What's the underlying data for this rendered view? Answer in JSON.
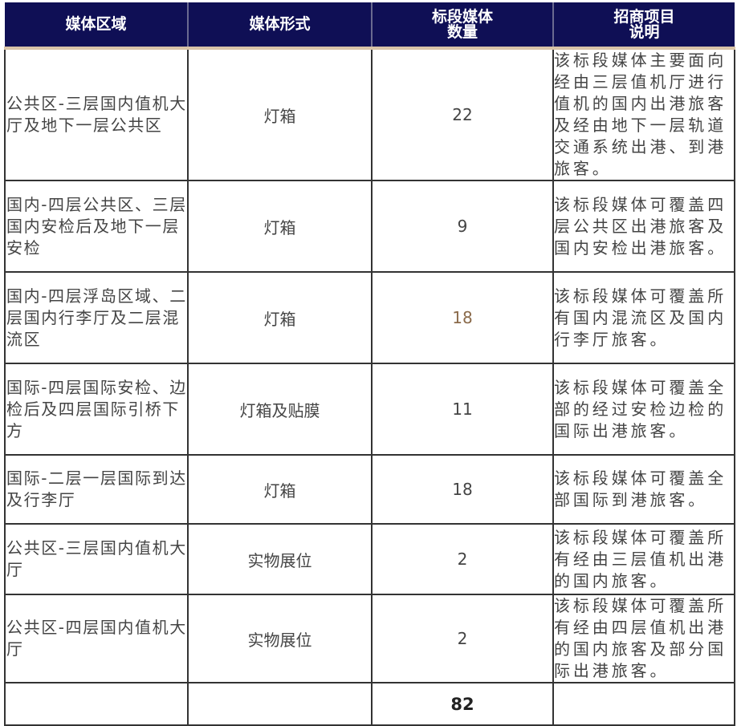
{
  "headers": [
    "媒体区域",
    "媒体形式",
    "标段媒体\n数量",
    "招商项目\n说明"
  ],
  "header_lines": {
    "h0": "媒体区域",
    "h1": "媒体形式",
    "h2a": "标段媒体",
    "h2b": "数量",
    "h3a": "招商项目",
    "h3b": "说明"
  },
  "colors": {
    "header_bg": "#0f0f55",
    "header_text": "#ffffff",
    "highlight_number": "#8a6a4a"
  },
  "rows": [
    {
      "area": "公共区-三层国内值机大厅及地下一层公共区",
      "form": "灯箱",
      "count": "22",
      "desc": "该标段媒体主要面向经由三层值机厅进行值机的国内出港旅客及经由地下一层轨道交通系统出港、到港旅客。"
    },
    {
      "area": "国内-四层公共区、三层国内安检后及地下一层安检",
      "form": "灯箱",
      "count": "9",
      "desc": "该标段媒体可覆盖四层公共区出港旅客及国内安检出港旅客。"
    },
    {
      "area": "国内-四层浮岛区域、二层国内行李厅及二层混流区",
      "form": "灯箱",
      "count": "18",
      "desc": "该标段媒体可覆盖所有国内混流区及国内行李厅旅客。"
    },
    {
      "area": "国际-四层国际安检、边检后及四层国际引桥下方",
      "form": "灯箱及贴膜",
      "count": "11",
      "desc": "该标段媒体可覆盖全部的经过安检边检的国际出港旅客。"
    },
    {
      "area": "国际-二层一层国际到达及行李厅",
      "form": "灯箱",
      "count": "18",
      "desc": "该标段媒体可覆盖全部国际到港旅客。"
    },
    {
      "area": "公共区-三层国内值机大厅",
      "form": "实物展位",
      "count": "2",
      "desc": "该标段媒体可覆盖所有经由三层值机出港的国内旅客。"
    },
    {
      "area": "公共区-四层国内值机大厅",
      "form": "实物展位",
      "count": "2",
      "desc": "该标段媒体可覆盖所有经由四层值机出港的国内旅客及部分国际出港旅客。"
    }
  ],
  "total": "82"
}
